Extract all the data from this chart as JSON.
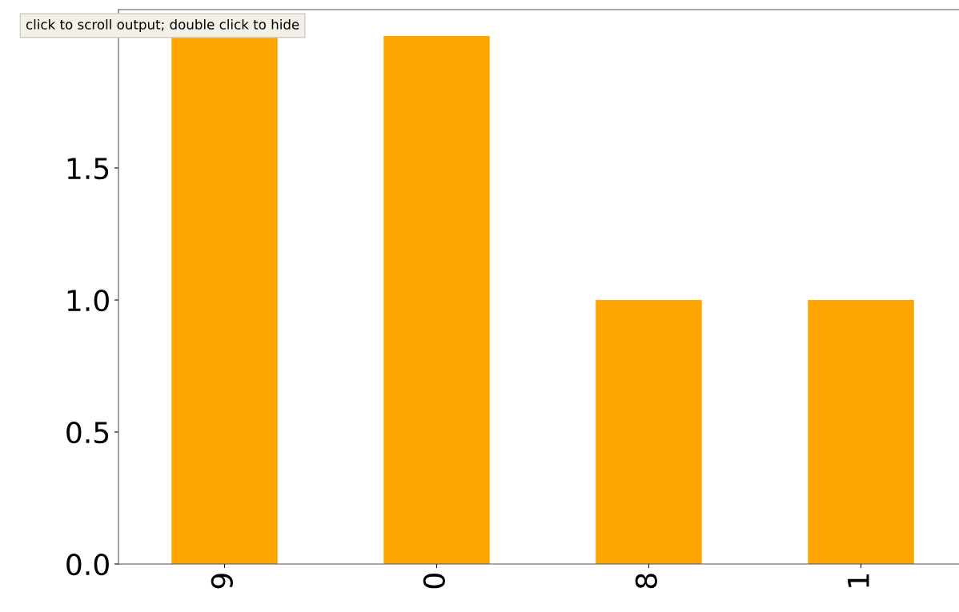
{
  "chart_data": {
    "type": "bar",
    "categories": [
      "9",
      "0",
      "8",
      "1"
    ],
    "values": [
      2,
      2,
      1,
      1
    ],
    "color": "#ffa500",
    "ylim": [
      0,
      2.1
    ],
    "yticks": [
      {
        "value": 0,
        "label": "0.0"
      },
      {
        "value": 0.5,
        "label": "0.5"
      },
      {
        "value": 1,
        "label": "1.0"
      },
      {
        "value": 1.5,
        "label": "1.5"
      },
      {
        "value": 2,
        "label": null
      }
    ],
    "grid": false,
    "annotations": [
      "click to scroll output; double click to hide"
    ]
  }
}
